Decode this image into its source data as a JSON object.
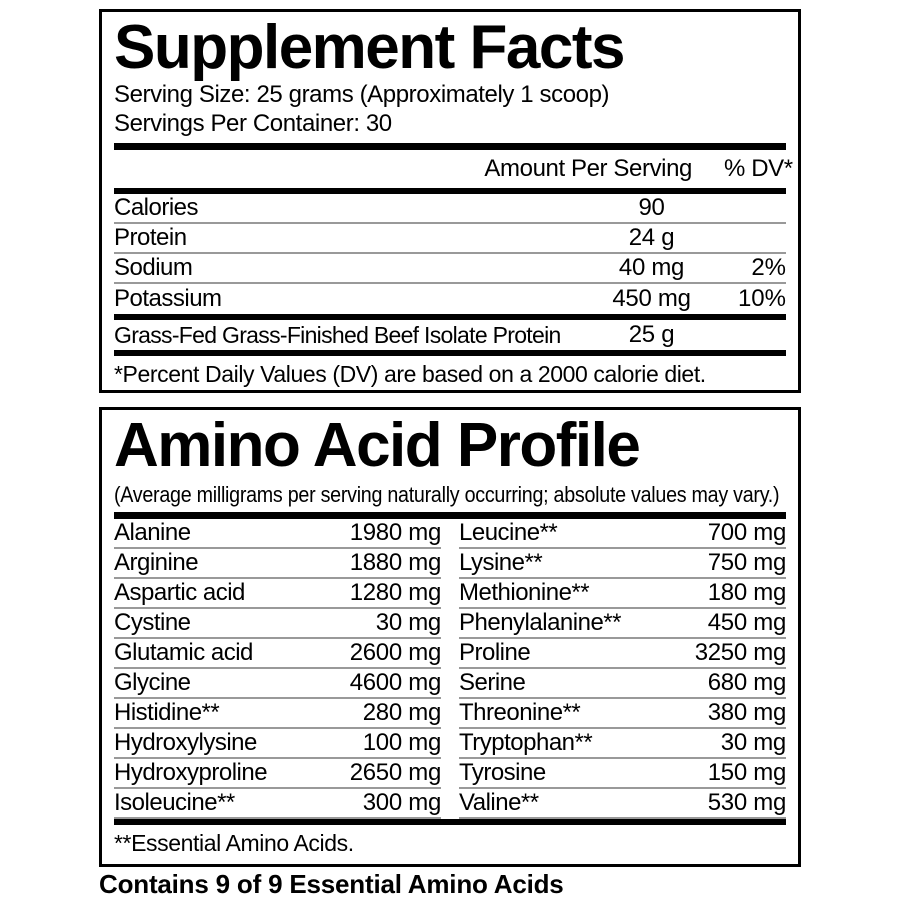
{
  "colors": {
    "text": "#000000",
    "separator": "#999999",
    "background": "#ffffff"
  },
  "supplement_facts": {
    "title": "Supplement Facts",
    "serving_size": "Serving Size: 25 grams (Approximately 1 scoop)",
    "servings_per_container": "Servings Per Container: 30",
    "header": {
      "amount": "Amount Per Serving",
      "dv": "% DV*"
    },
    "rows": [
      {
        "label": "Calories",
        "amount": "90",
        "dv": ""
      },
      {
        "label": "Protein",
        "amount": "24 g",
        "dv": ""
      },
      {
        "label": "Sodium",
        "amount": "40 mg",
        "dv": "2%"
      },
      {
        "label": "Potassium",
        "amount": "450 mg",
        "dv": "10%"
      },
      {
        "label": "Grass-Fed Grass-Finished Beef Isolate Protein",
        "amount": "25 g",
        "dv": ""
      }
    ],
    "footnote": "*Percent Daily Values (DV) are based on a 2000 calorie diet."
  },
  "amino_acid_profile": {
    "title": "Amino Acid Profile",
    "subtitle": "(Average milligrams per serving naturally occurring; absolute values may vary.)",
    "left_column": [
      {
        "name": "Alanine",
        "amount": "1980 mg"
      },
      {
        "name": "Arginine",
        "amount": "1880 mg"
      },
      {
        "name": "Aspartic acid",
        "amount": "1280 mg"
      },
      {
        "name": "Cystine",
        "amount": "30 mg"
      },
      {
        "name": "Glutamic acid",
        "amount": "2600 mg"
      },
      {
        "name": "Glycine",
        "amount": "4600 mg"
      },
      {
        "name": "Histidine**",
        "amount": "280 mg"
      },
      {
        "name": "Hydroxylysine",
        "amount": "100 mg"
      },
      {
        "name": "Hydroxyproline",
        "amount": "2650 mg"
      },
      {
        "name": "Isoleucine**",
        "amount": "300 mg"
      }
    ],
    "right_column": [
      {
        "name": "Leucine**",
        "amount": "700 mg"
      },
      {
        "name": "Lysine**",
        "amount": "750 mg"
      },
      {
        "name": "Methionine**",
        "amount": "180 mg"
      },
      {
        "name": "Phenylalanine**",
        "amount": "450 mg"
      },
      {
        "name": "Proline",
        "amount": "3250 mg"
      },
      {
        "name": "Serine",
        "amount": "680 mg"
      },
      {
        "name": "Threonine**",
        "amount": "380 mg"
      },
      {
        "name": "Tryptophan**",
        "amount": "30 mg"
      },
      {
        "name": "Tyrosine",
        "amount": "150 mg"
      },
      {
        "name": "Valine**",
        "amount": "530 mg"
      }
    ],
    "footnote": "**Essential Amino Acids."
  },
  "footer": {
    "contains": "Contains 9 of 9 Essential Amino Acids"
  }
}
